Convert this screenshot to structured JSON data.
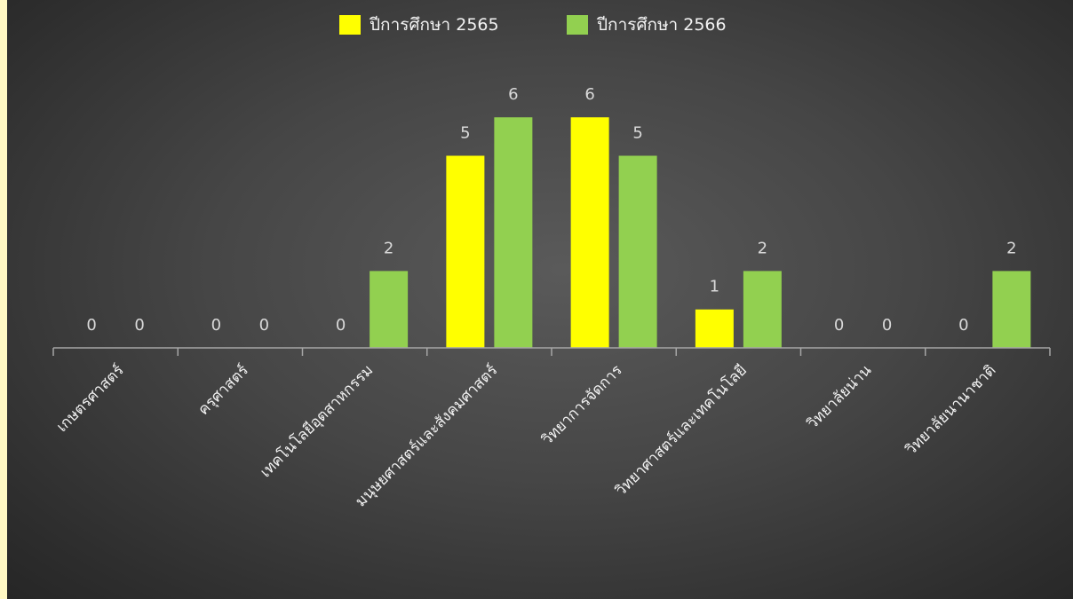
{
  "chart_data": {
    "type": "bar",
    "title": "",
    "xlabel": "",
    "ylabel": "",
    "categories": [
      "เกษตรศาสตร์",
      "ครุศาสตร์",
      "เทคโนโลยีอุตสาหกรรม",
      "มนุษยศาสตร์และสังคมศาสตร์",
      "วิทยาการจัดการ",
      "วิทยาศาสตร์และเทคโนโลยี",
      "วิทยาลัยน่าน",
      "วิทยาลัยนานาชาติ"
    ],
    "series": [
      {
        "name": "ปีการศึกษา 2565",
        "color": "#ffff00",
        "values": [
          0,
          0,
          0,
          5,
          6,
          1,
          0,
          0
        ]
      },
      {
        "name": "ปีการศึกษา 2566",
        "color": "#92d050",
        "values": [
          0,
          0,
          2,
          6,
          5,
          2,
          0,
          2
        ]
      }
    ],
    "ylim": [
      0,
      6
    ],
    "grid": false,
    "legend_position": "top"
  }
}
